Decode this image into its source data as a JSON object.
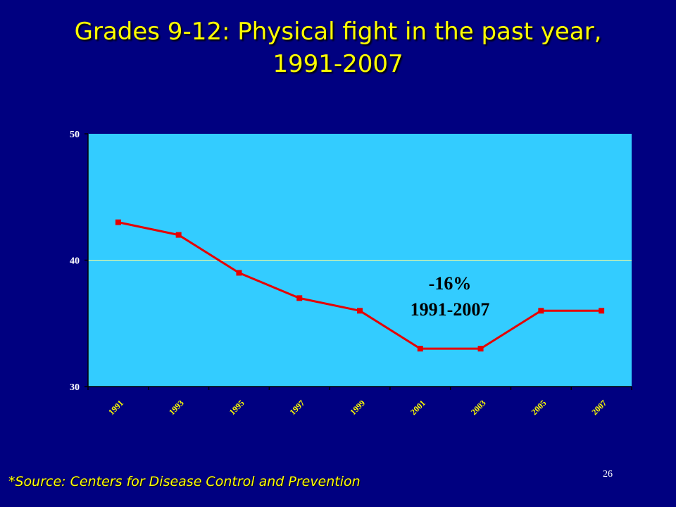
{
  "slide": {
    "title_line1": "Grades 9-12:  Physical fight in the past year,",
    "title_line2": "1991-2007",
    "source": "*Source: Centers for Disease Control and Prevention",
    "page_number": "26"
  },
  "colors": {
    "background": "#000080",
    "title": "#ffff00",
    "plot_area": "#33ccff",
    "line": "#e60000",
    "gridline": "#ffff99",
    "x_tick": "#ffff00"
  },
  "chart_data": {
    "type": "line",
    "title": "",
    "xlabel": "",
    "ylabel": "",
    "categories": [
      "1991",
      "1993",
      "1995",
      "1997",
      "1999",
      "2001",
      "2003",
      "2005",
      "2007"
    ],
    "series": [
      {
        "values": [
          43,
          42,
          39,
          37,
          36,
          33,
          33,
          36,
          36
        ]
      }
    ],
    "ylim": [
      30,
      50
    ],
    "yticks": [
      30,
      40,
      50
    ],
    "grid": true,
    "legend": "none",
    "annotation": {
      "line1": "-16%",
      "line2": "1991-2007"
    }
  }
}
